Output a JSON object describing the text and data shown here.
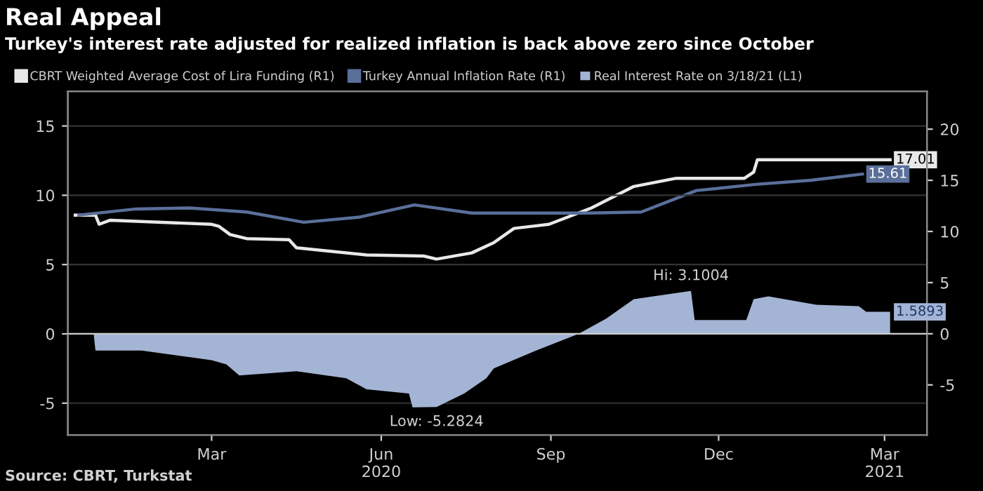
{
  "chart_data": {
    "type": "line",
    "title": "Real Appeal",
    "subtitle": "Turkey's interest rate adjusted for realized inflation is back above zero since October",
    "legend": "top",
    "grid": "y",
    "marker": "none",
    "line_style": "solid",
    "xlim": [
      "2019-12-28",
      "2021-04-07"
    ],
    "xticks": [
      {
        "value": "2020-03-15",
        "label": "Mar"
      },
      {
        "value": "2020-06-15",
        "label": "Jun\n2020"
      },
      {
        "value": "2020-09-15",
        "label": "Sep"
      },
      {
        "value": "2020-12-15",
        "label": "Dec"
      },
      {
        "value": "2021-03-15",
        "label": "Mar\n2021"
      }
    ],
    "ylim": [
      -7.3,
      17.5
    ],
    "yticks": [
      -5,
      0,
      5,
      10,
      15
    ],
    "y2lim": [
      -9.9,
      23.7
    ],
    "y2ticks": [
      -5,
      0,
      5,
      10,
      15,
      20
    ],
    "series": [
      {
        "name": "CBRT Weighted Average Cost of Lira Funding (R1)",
        "axis": "y2",
        "color": "#e8e8e8",
        "x": [
          "2020-01-01",
          "2020-01-12",
          "2020-01-14",
          "2020-01-20",
          "2020-03-15",
          "2020-03-19",
          "2020-03-25",
          "2020-04-03",
          "2020-04-26",
          "2020-04-30",
          "2020-06-07",
          "2020-07-08",
          "2020-07-15",
          "2020-08-03",
          "2020-08-15",
          "2020-08-26",
          "2020-09-14",
          "2020-10-07",
          "2020-10-30",
          "2020-11-22",
          "2020-12-29",
          "2021-01-03",
          "2021-01-05",
          "2021-03-18"
        ],
        "values": [
          11.6,
          11.6,
          10.7,
          11.1,
          10.7,
          10.5,
          9.7,
          9.3,
          9.2,
          8.4,
          7.7,
          7.6,
          7.3,
          7.9,
          8.9,
          10.3,
          10.7,
          12.3,
          14.4,
          15.2,
          15.2,
          15.8,
          17.01,
          17.01
        ],
        "value_labels": [
          null,
          null,
          null,
          null,
          null,
          null,
          null,
          null,
          null,
          null,
          null,
          null,
          null,
          null,
          null,
          null,
          null,
          null,
          null,
          null,
          null,
          null,
          null,
          "17.01"
        ]
      },
      {
        "name": "Turkey Annual Inflation Rate (R1)",
        "axis": "y2",
        "color": "#5a6f9a",
        "x": [
          "2020-01-03",
          "2020-02-03",
          "2020-03-03",
          "2020-04-03",
          "2020-05-04",
          "2020-06-03",
          "2020-07-03",
          "2020-08-03",
          "2020-09-03",
          "2020-10-05",
          "2020-11-03",
          "2020-12-03",
          "2021-01-04",
          "2021-02-03",
          "2021-03-03"
        ],
        "values": [
          11.6,
          12.2,
          12.3,
          11.9,
          10.9,
          11.4,
          12.6,
          11.8,
          11.8,
          11.8,
          11.9,
          14.0,
          14.6,
          15.0,
          15.61
        ],
        "value_labels": [
          null,
          null,
          null,
          null,
          null,
          null,
          null,
          null,
          null,
          null,
          null,
          null,
          null,
          null,
          "15.61"
        ]
      },
      {
        "name": "Real Interest Rate on 3/18/21 (L1)",
        "type": "area",
        "color": "#a4b4d4",
        "x": [
          "2020-01-02",
          "2020-01-11",
          "2020-01-12",
          "2020-02-06",
          "2020-03-15",
          "2020-03-23",
          "2020-03-30",
          "2020-04-30",
          "2020-05-27",
          "2020-06-07",
          "2020-06-30",
          "2020-07-02",
          "2020-07-15",
          "2020-07-30",
          "2020-08-11",
          "2020-08-15",
          "2020-09-07",
          "2020-09-30",
          "2020-10-15",
          "2020-10-30",
          "2020-11-30",
          "2020-12-02",
          "2020-12-30",
          "2021-01-03",
          "2021-01-11",
          "2021-02-06",
          "2021-03-01",
          "2021-03-05",
          "2021-03-18"
        ],
        "values": [
          0,
          0,
          -1.2,
          -1.2,
          -1.9,
          -2.2,
          -3.0,
          -2.7,
          -3.2,
          -4.0,
          -4.3,
          -5.3,
          -5.2824,
          -4.3,
          -3.2,
          -2.5,
          -1.2,
          0,
          1.1,
          2.5,
          3.1004,
          1.0,
          1.0,
          2.5,
          2.7,
          2.1,
          2.0,
          1.5893,
          1.5893
        ],
        "value_labels": [
          null,
          null,
          null,
          null,
          null,
          null,
          null,
          null,
          null,
          null,
          null,
          null,
          null,
          null,
          null,
          null,
          null,
          null,
          null,
          null,
          null,
          null,
          null,
          null,
          null,
          null,
          null,
          null,
          "1.5893"
        ]
      }
    ],
    "annotations": [
      {
        "text": "Hi: 3.1004",
        "x": "2020-11-30",
        "y": 3.1004
      },
      {
        "text": "Low: -5.2824",
        "x": "2020-07-15",
        "y": -5.2824
      },
      "Source: CBRT, Turkstat"
    ]
  }
}
